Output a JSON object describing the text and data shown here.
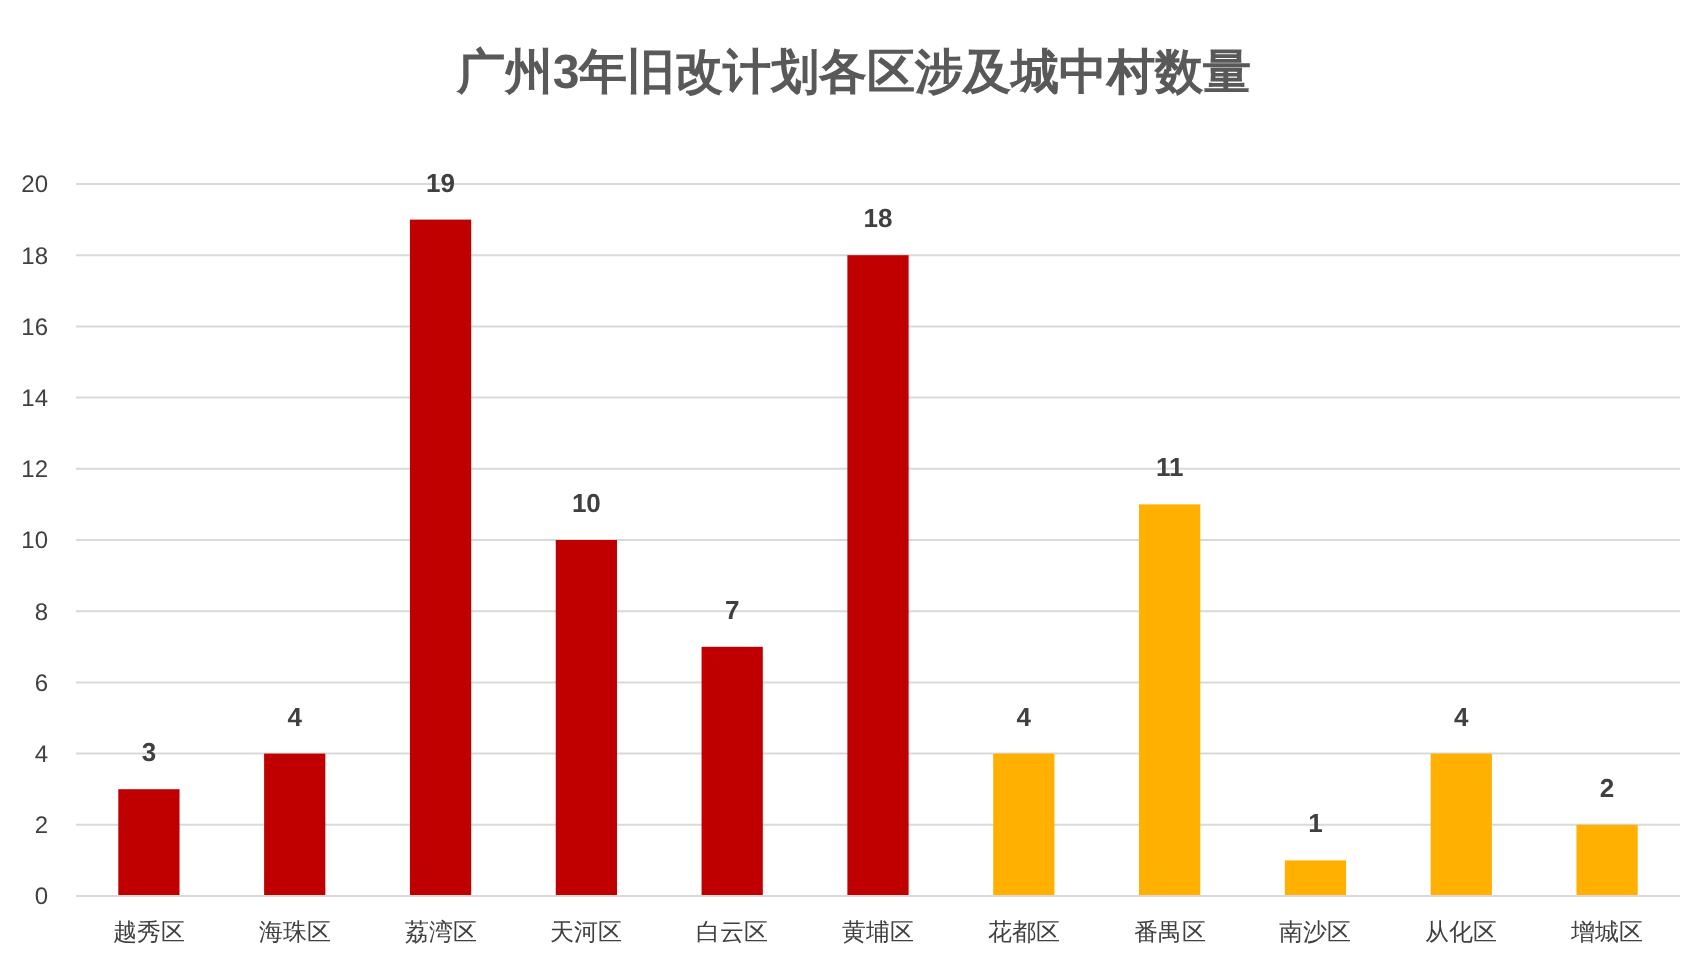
{
  "chart_data": {
    "type": "bar",
    "title": "广州3年旧改计划各区涉及城中村数量",
    "categories": [
      "越秀区",
      "海珠区",
      "荔湾区",
      "天河区",
      "白云区",
      "黄埔区",
      "花都区",
      "番禺区",
      "南沙区",
      "从化区",
      "增城区"
    ],
    "values": [
      3,
      4,
      19,
      10,
      7,
      18,
      4,
      11,
      1,
      4,
      2
    ],
    "colors": [
      "#c00000",
      "#c00000",
      "#c00000",
      "#c00000",
      "#c00000",
      "#c00000",
      "#ffb000",
      "#ffb000",
      "#ffb000",
      "#ffb000",
      "#ffb000"
    ],
    "ylim": [
      0,
      20
    ],
    "yticks": [
      0,
      2,
      4,
      6,
      8,
      10,
      12,
      14,
      16,
      18,
      20
    ],
    "grid": "y",
    "data_labels": true
  }
}
